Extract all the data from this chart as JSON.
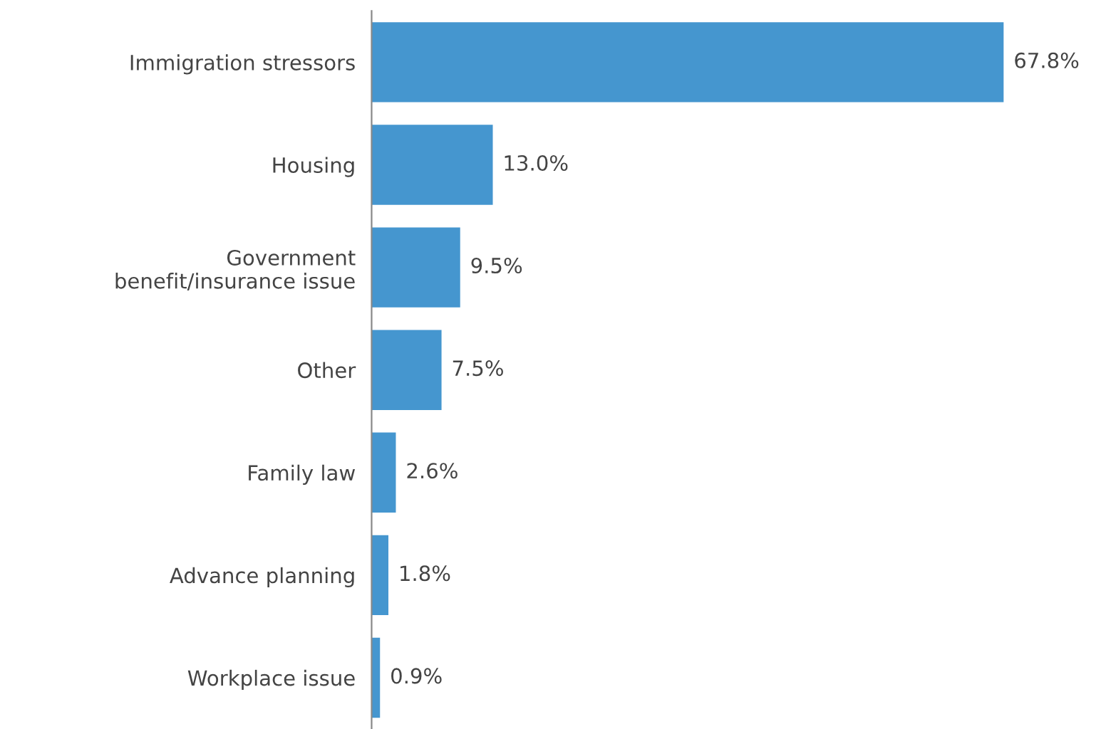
{
  "chart_data": {
    "type": "bar",
    "orientation": "horizontal",
    "categories": [
      "Immigration stressors",
      "Housing",
      "Government\nbenefit/insurance issue",
      "Other",
      "Family law",
      "Advance planning",
      "Workplace issue"
    ],
    "values": [
      67.8,
      13.0,
      9.5,
      7.5,
      2.6,
      1.8,
      0.9
    ],
    "value_labels": [
      "67.8%",
      "13.0%",
      "9.5%",
      "7.5%",
      "2.6%",
      "1.8%",
      "0.9%"
    ],
    "color": "#4596cf"
  }
}
